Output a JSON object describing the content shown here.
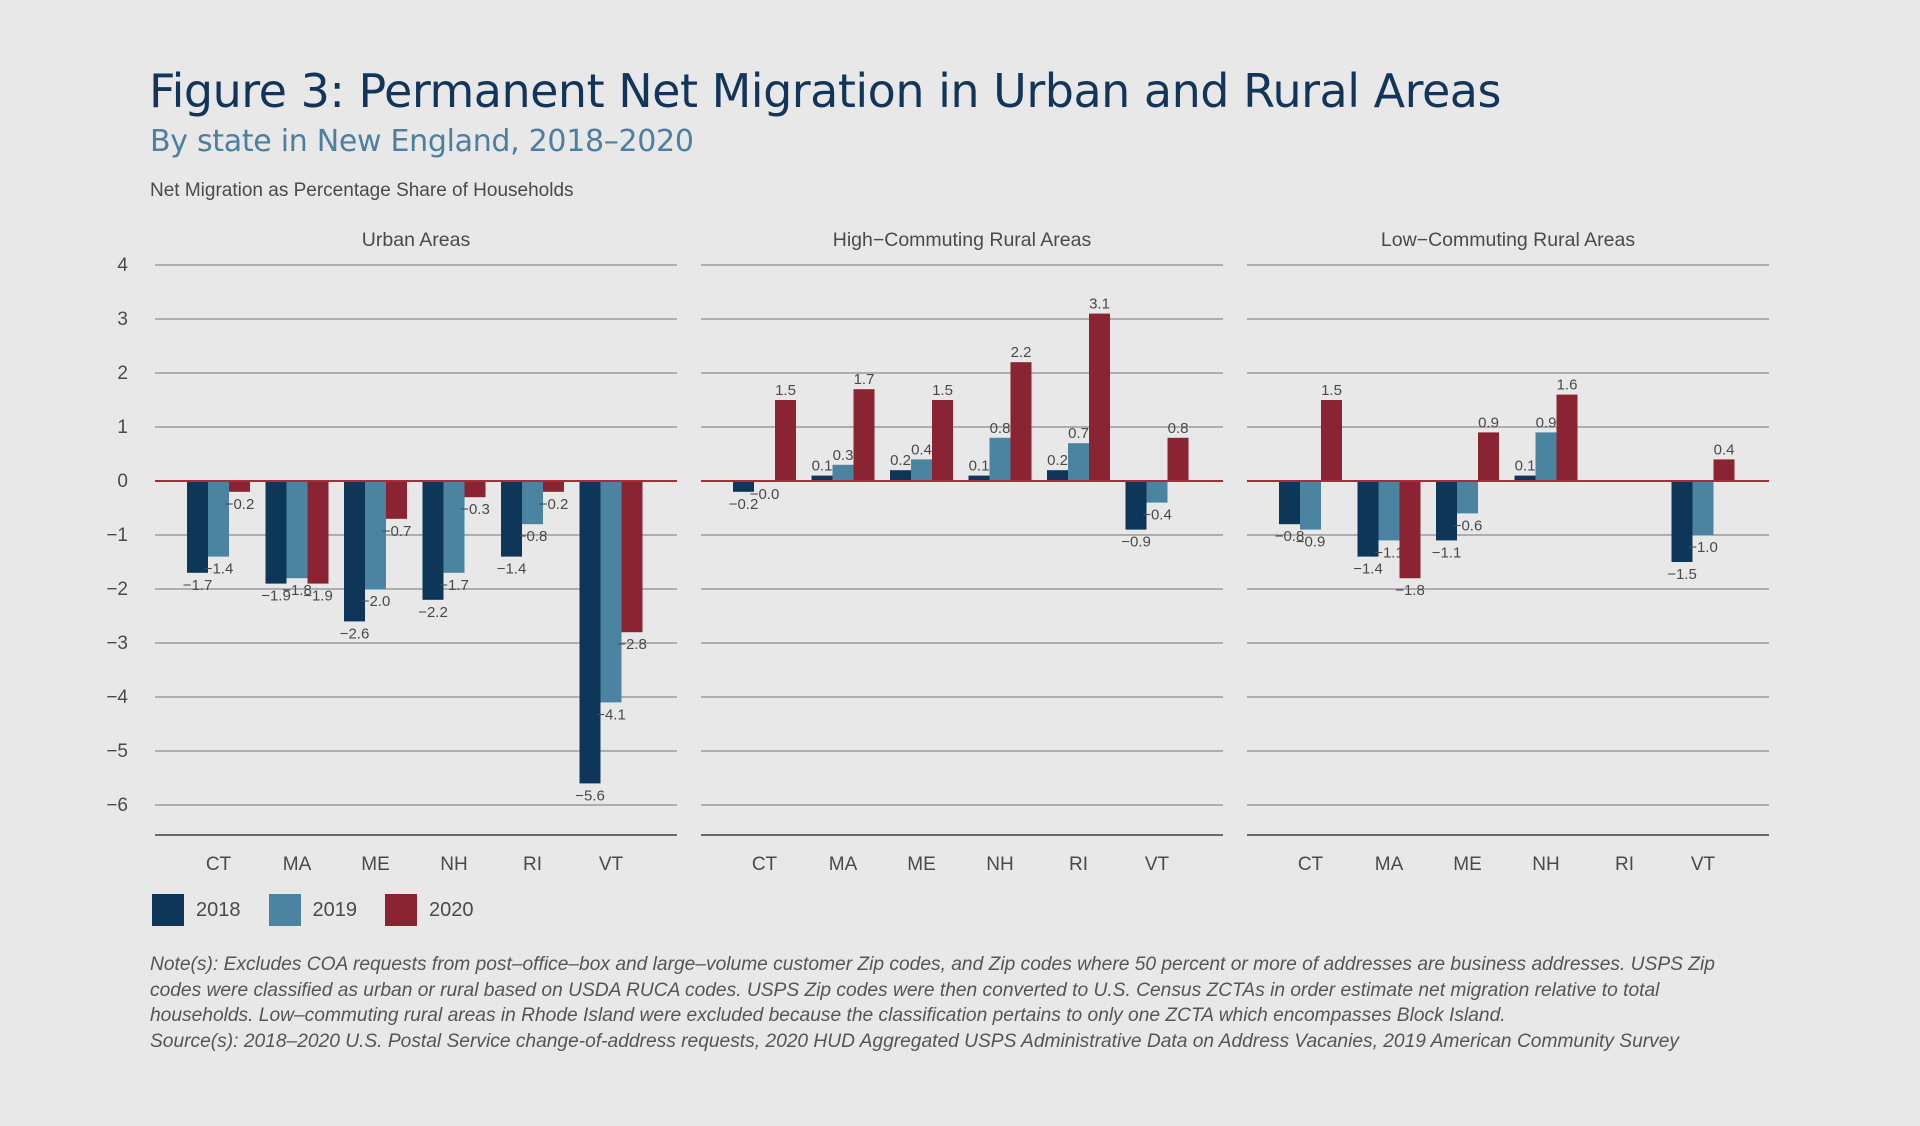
{
  "title": "Figure 3: Permanent Net Migration in Urban and Rural Areas",
  "subtitle": "By state in New England, 2018–2020",
  "y_axis_label": "Net Migration as Percentage Share of Households",
  "legend": [
    {
      "label": "2018",
      "color": "#0d3659"
    },
    {
      "label": "2019",
      "color": "#4a84a0"
    },
    {
      "label": "2020",
      "color": "#8a2332"
    }
  ],
  "notes": [
    "Note(s): Excludes COA requests from post–office–box and large–volume customer Zip codes, and Zip codes where 50 percent or more of addresses are business addresses. USPS Zip",
    "codes were classified as urban or rural based on USDA RUCA codes. USPS Zip codes were then converted to U.S. Census ZCTAs in order estimate net migration relative to total",
    "households. Low–commuting rural areas in Rhode Island were excluded because the classification pertains to only one ZCTA which encompasses Block Island.",
    "Source(s): 2018–2020 U.S. Postal Service change-of-address requests, 2020 HUD Aggregated USPS Administrative Data on Address Vacanies, 2019 American Community Survey"
  ],
  "colors": {
    "zero_line": "#b0293a",
    "grid": "#8c8c8c",
    "text": "#4a4a4a"
  },
  "chart_data": {
    "type": "bar",
    "ylim": [
      -6,
      4
    ],
    "yticks": [
      "4",
      "3",
      "2",
      "1",
      "0",
      "−1",
      "−2",
      "−3",
      "−4",
      "−5",
      "−6"
    ],
    "categories": [
      "CT",
      "MA",
      "ME",
      "NH",
      "RI",
      "VT"
    ],
    "series_names": [
      "2018",
      "2019",
      "2020"
    ],
    "panels": [
      {
        "title": "Urban Areas",
        "series": [
          {
            "name": "2018",
            "values": [
              -1.7,
              -1.9,
              -2.6,
              -2.2,
              -1.4,
              -5.6
            ],
            "labels": [
              "−1.7",
              "−1.9",
              "−2.6",
              "−2.2",
              "−1.4",
              "−5.6"
            ]
          },
          {
            "name": "2019",
            "values": [
              -1.4,
              -1.8,
              -2.0,
              -1.7,
              -0.8,
              -4.1
            ],
            "labels": [
              "−1.4",
              "−1.8",
              "−2.0",
              "−1.7",
              "−0.8",
              "−4.1"
            ]
          },
          {
            "name": "2020",
            "values": [
              -0.2,
              -1.9,
              -0.7,
              -0.3,
              -0.2,
              -2.8
            ],
            "labels": [
              "−0.2",
              "−1.9",
              "−0.7",
              "−0.3",
              "−0.2",
              "−2.8"
            ]
          }
        ]
      },
      {
        "title": "High−Commuting Rural Areas",
        "series": [
          {
            "name": "2018",
            "values": [
              -0.2,
              0.1,
              0.2,
              0.1,
              0.2,
              -0.9
            ],
            "labels": [
              "−0.2",
              "0.1",
              "0.2",
              "0.1",
              "0.2",
              "−0.9"
            ]
          },
          {
            "name": "2019",
            "values": [
              -0.02,
              0.3,
              0.4,
              0.8,
              0.7,
              -0.4
            ],
            "labels": [
              "−0.0",
              "0.3",
              "0.4",
              "0.8",
              "0.7",
              "−0.4"
            ]
          },
          {
            "name": "2020",
            "values": [
              1.5,
              1.7,
              1.5,
              2.2,
              3.1,
              0.8
            ],
            "labels": [
              "1.5",
              "1.7",
              "1.5",
              "2.2",
              "3.1",
              "0.8"
            ]
          }
        ]
      },
      {
        "title": "Low−Commuting Rural Areas",
        "series": [
          {
            "name": "2018",
            "values": [
              -0.8,
              -1.4,
              -1.1,
              0.1,
              null,
              -1.5
            ],
            "labels": [
              "−0.8",
              "−1.4",
              "−1.1",
              "0.1",
              "",
              "−1.5"
            ]
          },
          {
            "name": "2019",
            "values": [
              -0.9,
              -1.1,
              -0.6,
              0.9,
              null,
              -1.0
            ],
            "labels": [
              "−0.9",
              "−1.1",
              "−0.6",
              "0.9",
              "",
              "−1.0"
            ]
          },
          {
            "name": "2020",
            "values": [
              1.5,
              -1.8,
              0.9,
              1.6,
              null,
              0.4
            ],
            "labels": [
              "1.5",
              "−1.8",
              "0.9",
              "1.6",
              "",
              "0.4"
            ]
          }
        ]
      }
    ]
  }
}
